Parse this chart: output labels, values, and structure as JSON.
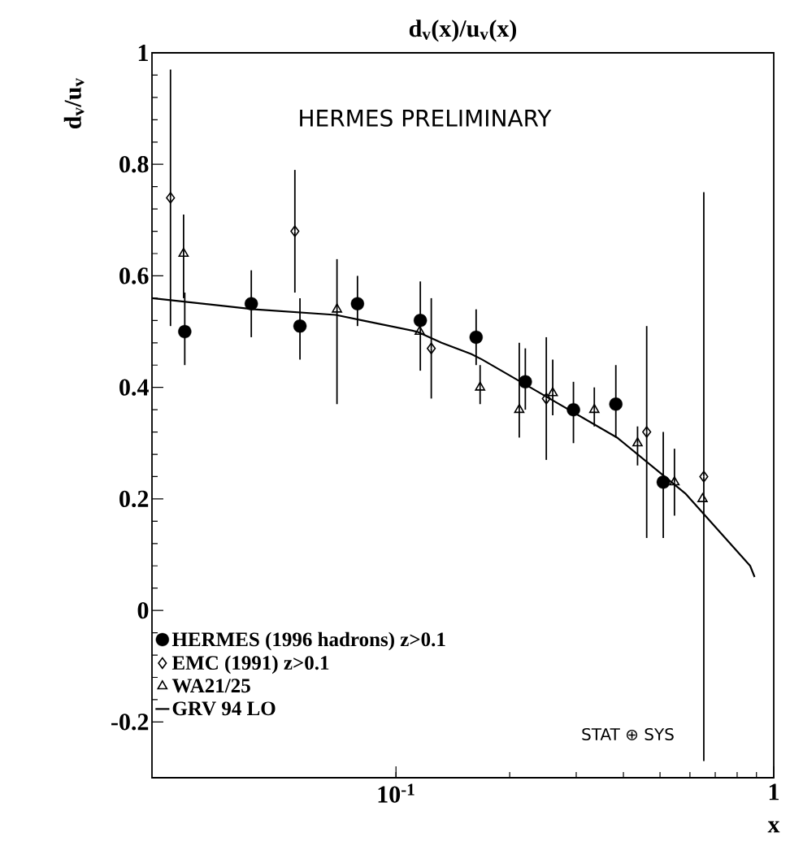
{
  "chart_data": {
    "type": "scatter",
    "title": "d$_{v}$(x)/u$_{v}$(x)",
    "xlabel": "x",
    "ylabel": "d$_{v}$/u$_{v}$",
    "log": "x",
    "xlim": [
      0.0226,
      1
    ],
    "ylim": [
      -0.3,
      1.0
    ],
    "xticks": [
      {
        "value": 0.1,
        "label": "10$^{-1}$"
      },
      1
    ],
    "yticks": [
      -0.2,
      0,
      0.2,
      0.4,
      0.6,
      0.8,
      1
    ],
    "legend": "bottom left",
    "annotations": [
      "HERMES PRELIMINARY",
      "STAT ⊕ SYS"
    ],
    "series": [
      {
        "name": "HERMES (1996 hadrons) z>0.1",
        "marker": "circle",
        "color": "#000000",
        "x": [
          0.0276,
          0.0414,
          0.0557,
          0.0791,
          0.116,
          0.163,
          0.22,
          0.295,
          0.382,
          0.51
        ],
        "values": [
          0.5,
          0.55,
          0.51,
          0.55,
          0.52,
          0.49,
          0.41,
          0.36,
          0.37,
          0.23
        ],
        "errors": [
          [
            0.44,
            0.57
          ],
          [
            0.49,
            0.61
          ],
          [
            0.45,
            0.56
          ],
          [
            0.51,
            0.6
          ],
          [
            0.43,
            0.59
          ],
          [
            0.44,
            0.54
          ],
          [
            0.36,
            0.47
          ],
          [
            0.3,
            0.41
          ],
          [
            0.31,
            0.44
          ],
          [
            0.13,
            0.32
          ]
        ]
      },
      {
        "name": "EMC (1991) z>0.1",
        "marker": "diamond",
        "color": "#000000",
        "x": [
          0.0253,
          0.054,
          0.124,
          0.25,
          0.461,
          0.653
        ],
        "values": [
          0.74,
          0.68,
          0.47,
          0.38,
          0.32,
          0.24
        ],
        "errors": [
          [
            0.51,
            0.97
          ],
          [
            0.57,
            0.79
          ],
          [
            0.38,
            0.56
          ],
          [
            0.27,
            0.49
          ],
          [
            0.13,
            0.51
          ],
          [
            -0.27,
            0.75
          ]
        ]
      },
      {
        "name": "WA21/25",
        "marker": "triangle",
        "color": "#000000",
        "x": [
          0.0274,
          0.0698,
          0.1156,
          0.167,
          0.212,
          0.26,
          0.335,
          0.436,
          0.546,
          0.648
        ],
        "values": [
          0.64,
          0.54,
          0.5,
          0.4,
          0.36,
          0.39,
          0.36,
          0.3,
          0.23,
          0.2
        ],
        "errors": [
          [
            0.56,
            0.71
          ],
          [
            0.37,
            0.63
          ],
          null,
          [
            0.37,
            0.44
          ],
          [
            0.31,
            0.48
          ],
          [
            0.35,
            0.45
          ],
          [
            0.33,
            0.4
          ],
          [
            0.26,
            0.33
          ],
          [
            0.17,
            0.29
          ],
          null
        ]
      },
      {
        "name": "GRV 94 LO",
        "type": "line",
        "marker": "none",
        "line_style": "solid",
        "color": "#000000",
        "x": [
          0.0226,
          0.0422,
          0.0693,
          0.0817,
          0.1136,
          0.132,
          0.158,
          0.169,
          0.255,
          0.385,
          0.583,
          0.866,
          0.89
        ],
        "values": [
          0.56,
          0.54,
          0.53,
          0.52,
          0.5,
          0.48,
          0.46,
          0.45,
          0.38,
          0.31,
          0.21,
          0.08,
          0.06
        ]
      }
    ]
  }
}
